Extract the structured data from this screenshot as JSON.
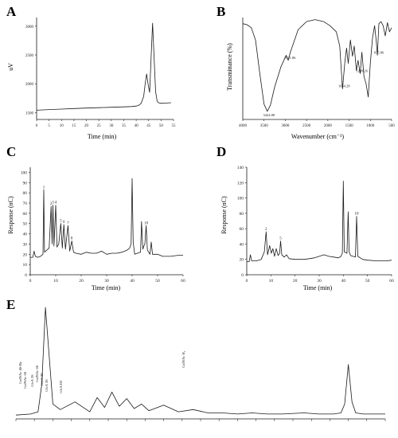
{
  "chart_data": [
    {
      "panel": "A",
      "type": "line",
      "xlabel": "Time (min)",
      "ylabel": "uV",
      "xticks": [
        0,
        5,
        10,
        15,
        20,
        25,
        30,
        35,
        40,
        45,
        50,
        55
      ],
      "xtick_labels": [
        "0",
        "5",
        "10",
        "15",
        "20",
        "25",
        "30",
        "35",
        "40",
        "45",
        "50",
        "55"
      ],
      "yticks": [
        1500,
        2000,
        2500,
        3000
      ],
      "ytick_labels": [
        "1500",
        "2000",
        "2500",
        "3000"
      ],
      "xlim": [
        0,
        55
      ],
      "ylim": [
        1380,
        3150
      ],
      "grid": false,
      "series": [
        {
          "x": [
            0,
            5,
            10,
            15,
            20,
            25,
            30,
            35,
            38,
            40,
            41,
            42,
            43,
            43.6,
            44.2,
            44.8,
            45.4,
            46,
            46.6,
            47.2,
            47.8,
            48.4,
            49,
            50,
            52,
            54
          ],
          "y": [
            1540,
            1552,
            1560,
            1570,
            1578,
            1585,
            1592,
            1598,
            1604,
            1612,
            1625,
            1660,
            1780,
            1990,
            2170,
            1990,
            1850,
            2480,
            3050,
            2450,
            1860,
            1700,
            1670,
            1660,
            1665,
            1670
          ]
        }
      ]
    },
    {
      "panel": "B",
      "type": "line",
      "xlabel": "Wavenumber (cm⁻¹)",
      "ylabel": "Transmittance (%)",
      "xticks": [
        4000,
        3500,
        3000,
        2500,
        2000,
        1500,
        1000,
        500
      ],
      "xtick_labels": [
        "4000",
        "3500",
        "3000",
        "2500",
        "2000",
        "1500",
        "1000",
        "500"
      ],
      "xlim": [
        4000,
        500
      ],
      "ylim": [
        0,
        100
      ],
      "annotations": [
        {
          "x": 3424,
          "y": 8,
          "text": "3424.88"
        },
        {
          "x": 2931,
          "y": 58,
          "text": "2931.86"
        },
        {
          "x": 1654,
          "y": 30,
          "text": "1654.28"
        },
        {
          "x": 1239,
          "y": 45,
          "text": "1239.26"
        },
        {
          "x": 835,
          "y": 63,
          "text": "835.86"
        }
      ],
      "series": [
        {
          "x": [
            4000,
            3900,
            3800,
            3700,
            3600,
            3500,
            3424,
            3350,
            3250,
            3100,
            2980,
            2931,
            2880,
            2700,
            2500,
            2300,
            2100,
            1950,
            1800,
            1720,
            1654,
            1600,
            1560,
            1520,
            1470,
            1420,
            1380,
            1330,
            1290,
            1239,
            1200,
            1150,
            1100,
            1050,
            1000,
            950,
            900,
            860,
            835,
            800,
            750,
            700,
            650,
            600,
            550,
            500
          ],
          "y": [
            94,
            93,
            90,
            78,
            45,
            15,
            8,
            14,
            32,
            52,
            63,
            58,
            66,
            88,
            96,
            98,
            96,
            92,
            86,
            72,
            30,
            56,
            70,
            55,
            78,
            62,
            72,
            48,
            58,
            45,
            66,
            42,
            35,
            22,
            56,
            80,
            92,
            76,
            63,
            94,
            96,
            92,
            82,
            95,
            86,
            90
          ]
        }
      ]
    },
    {
      "panel": "C",
      "type": "line",
      "xlabel": "Time (min)",
      "ylabel": "Response (nC)",
      "xticks": [
        0,
        10,
        20,
        30,
        40,
        50,
        60
      ],
      "xtick_labels": [
        "0",
        "10",
        "20",
        "30",
        "40",
        "50",
        "60"
      ],
      "yticks": [
        0,
        10,
        20,
        30,
        40,
        50,
        60,
        70,
        80,
        90,
        100
      ],
      "ytick_labels": [
        "0",
        "10",
        "20",
        "30",
        "40",
        "50",
        "60",
        "70",
        "80",
        "90",
        "100"
      ],
      "xlim": [
        0,
        60
      ],
      "ylim": [
        0,
        105
      ],
      "peak_labels": [
        {
          "x": 5.3,
          "y": 83,
          "text": "1"
        },
        {
          "x": 8.2,
          "y": 67,
          "text": "2"
        },
        {
          "x": 8.9,
          "y": 68,
          "text": "3"
        },
        {
          "x": 10.0,
          "y": 68,
          "text": "4"
        },
        {
          "x": 12.0,
          "y": 50,
          "text": "5"
        },
        {
          "x": 13.2,
          "y": 49,
          "text": "6"
        },
        {
          "x": 14.8,
          "y": 48,
          "text": "7"
        },
        {
          "x": 16.3,
          "y": 33,
          "text": "8"
        },
        {
          "x": 45.5,
          "y": 48,
          "text": "10"
        }
      ],
      "series": [
        {
          "x": [
            0,
            1,
            1.5,
            2,
            3,
            4,
            5,
            5.3,
            5.6,
            6.5,
            7.4,
            8.2,
            8.6,
            8.9,
            9.3,
            10.0,
            10.5,
            11.2,
            12.0,
            12.6,
            13.2,
            13.8,
            14.8,
            15.5,
            16.3,
            17,
            18,
            20,
            22,
            24,
            26,
            28,
            30,
            32,
            34,
            36,
            38,
            39,
            39.6,
            40.0,
            40.4,
            41,
            42,
            43.3,
            43.7,
            44.2,
            44.6,
            45.0,
            45.5,
            46,
            47,
            47.5,
            48,
            50,
            52,
            55,
            58,
            60
          ],
          "y": [
            17,
            17,
            23,
            18,
            17,
            18,
            20,
            83,
            22,
            24,
            26,
            67,
            30,
            68,
            28,
            68,
            27,
            30,
            50,
            26,
            49,
            25,
            48,
            23,
            33,
            22,
            21,
            20,
            22,
            21,
            21,
            23,
            20,
            21,
            21,
            22,
            24,
            26,
            30,
            94,
            32,
            20,
            21,
            22,
            52,
            25,
            28,
            30,
            48,
            24,
            20,
            32,
            20,
            20,
            18,
            18,
            19,
            19
          ]
        }
      ]
    },
    {
      "panel": "D",
      "type": "line",
      "xlabel": "Time (min)",
      "ylabel": "Response (nC)",
      "xticks": [
        0,
        10,
        20,
        30,
        40,
        50,
        60
      ],
      "xtick_labels": [
        "0",
        "10",
        "20",
        "30",
        "40",
        "50",
        "60"
      ],
      "yticks": [
        0,
        20,
        40,
        60,
        80,
        100,
        120,
        140
      ],
      "ytick_labels": [
        "0",
        "20",
        "40",
        "60",
        "80",
        "100",
        "120",
        "140"
      ],
      "xlim": [
        0,
        60
      ],
      "ylim": [
        0,
        140
      ],
      "peak_labels": [
        {
          "x": 8.0,
          "y": 56,
          "text": "2"
        },
        {
          "x": 14.0,
          "y": 44,
          "text": "5"
        },
        {
          "x": 45.5,
          "y": 76,
          "text": "10"
        }
      ],
      "series": [
        {
          "x": [
            0,
            1,
            1.5,
            2,
            4,
            5,
            6,
            7.3,
            8.0,
            8.6,
            9.5,
            10.2,
            10.8,
            11.5,
            12.2,
            13.0,
            13.6,
            14.0,
            14.5,
            15.5,
            16.5,
            17.5,
            20,
            24,
            28,
            30,
            32,
            34,
            36,
            38,
            39,
            39.6,
            40.0,
            40.4,
            41.5,
            42,
            42.4,
            43,
            45,
            45.5,
            46,
            48,
            50,
            54,
            58,
            60
          ],
          "y": [
            17,
            17,
            26,
            18,
            18,
            19,
            20,
            30,
            56,
            26,
            38,
            28,
            34,
            24,
            34,
            25,
            28,
            44,
            26,
            23,
            26,
            21,
            20,
            20,
            22,
            24,
            26,
            24,
            23,
            22,
            24,
            28,
            122,
            30,
            28,
            82,
            30,
            25,
            23,
            76,
            24,
            20,
            19,
            18,
            18,
            19
          ]
        }
      ]
    },
    {
      "panel": "E",
      "type": "line",
      "peak_labels": [
        {
          "text": "GalNAc 4S-Bz"
        },
        {
          "text": "GalNAc 6S"
        },
        {
          "text": "GlcA 3S"
        },
        {
          "text": "GalNAc 6S"
        },
        {
          "text": "GlcA 2S"
        },
        {
          "text": "GlcA 3S"
        },
        {
          "text": "GlcA H2"
        },
        {
          "text": "GalNAc H₃"
        }
      ],
      "series": [
        {
          "x": [
            0,
            4,
            6,
            7,
            8,
            10,
            12,
            16,
            20,
            22,
            24,
            26,
            28,
            30,
            32,
            34,
            36,
            40,
            44,
            48,
            52,
            56,
            60,
            64,
            68,
            72,
            78,
            82,
            86,
            88,
            89,
            90,
            91,
            92,
            94,
            96,
            100
          ],
          "y": [
            2,
            3,
            5,
            30,
            100,
            12,
            7,
            14,
            5,
            18,
            9,
            23,
            10,
            17,
            8,
            12,
            6,
            11,
            5,
            7,
            4,
            4,
            3,
            4,
            3,
            3,
            4,
            3,
            3,
            4,
            12,
            48,
            14,
            4,
            3,
            3,
            3
          ]
        }
      ]
    }
  ],
  "panel_letters": [
    "A",
    "B",
    "C",
    "D",
    "E"
  ],
  "colors": {
    "line": "#1a1a1a",
    "axis": "#222222",
    "label": "#111111"
  }
}
